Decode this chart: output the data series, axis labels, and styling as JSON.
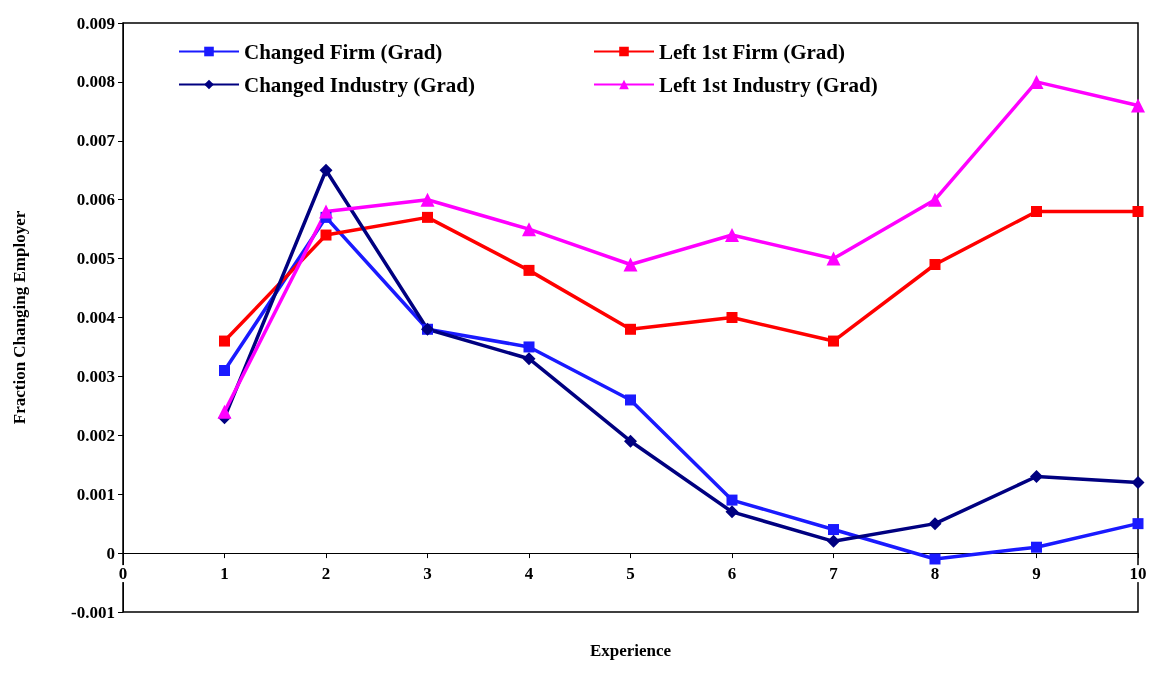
{
  "chart_data": {
    "type": "line",
    "xlabel": "Experience",
    "ylabel": "Fraction Changing Employer",
    "x": [
      1,
      2,
      3,
      4,
      5,
      6,
      7,
      8,
      9,
      10
    ],
    "series": [
      {
        "name": "Changed Firm (Grad)",
        "color": "#1a1aff",
        "marker": "square",
        "values": [
          0.0031,
          0.0057,
          0.0038,
          0.0035,
          0.0026,
          0.0009,
          0.0004,
          -0.0001,
          0.0001,
          0.0005
        ]
      },
      {
        "name": "Left 1st Firm (Grad)",
        "color": "#ff0000",
        "marker": "square",
        "values": [
          0.0036,
          0.0054,
          0.0057,
          0.0048,
          0.0038,
          0.004,
          0.0036,
          0.0049,
          0.0058,
          0.0058
        ]
      },
      {
        "name": "Changed Industry (Grad)",
        "color": "#000080",
        "marker": "diamond",
        "values": [
          0.0023,
          0.0065,
          0.0038,
          0.0033,
          0.0019,
          0.0007,
          0.0002,
          0.0005,
          0.0013,
          0.0012
        ]
      },
      {
        "name": "Left 1st Industry (Grad)",
        "color": "#ff00ff",
        "marker": "triangle",
        "values": [
          0.0024,
          0.0058,
          0.006,
          0.0055,
          0.0049,
          0.0054,
          0.005,
          0.006,
          0.008,
          0.0076
        ]
      }
    ],
    "xlim": [
      0,
      10
    ],
    "xticks": [
      0,
      1,
      2,
      3,
      4,
      5,
      6,
      7,
      8,
      9,
      10
    ],
    "ylim": [
      -0.001,
      0.009
    ],
    "yticks": [
      -0.001,
      0,
      0.001,
      0.002,
      0.003,
      0.004,
      0.005,
      0.006,
      0.007,
      0.008,
      0.009
    ],
    "grid": false,
    "legend": "top left",
    "line_style": "solid"
  }
}
